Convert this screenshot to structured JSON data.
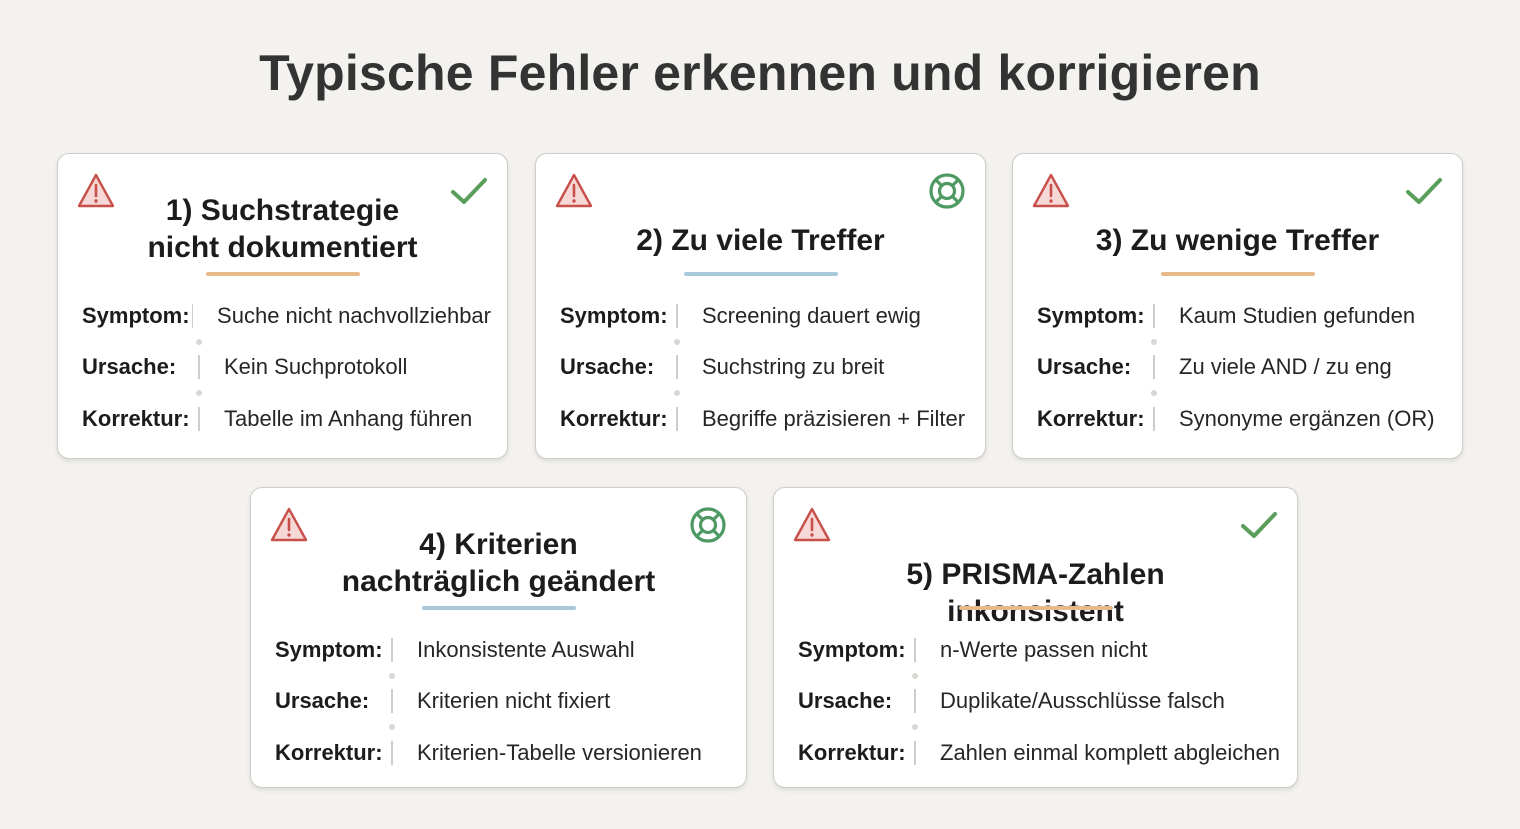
{
  "title": "Typische Fehler erkennen und korrigieren",
  "colors": {
    "warning": "#c8504b",
    "warning_fill": "#f6d9d7",
    "check": "#5a9e5c",
    "lifebuoy": "#4f9a63",
    "accent_orange": "#e9b98a",
    "accent_blue": "#a9c8dc"
  },
  "labels": {
    "symptom": "Symptom:",
    "cause": "Ursache:",
    "fix": "Korrektur:"
  },
  "cards": [
    {
      "title_lines": [
        "1) Suchstrategie",
        "nicht dokumentiert"
      ],
      "left_icon": "warning-icon",
      "right_icon": "check-icon",
      "accent": "orange",
      "symptom": "Suche nicht nachvollziehbar",
      "cause": "Kein Suchprotokoll",
      "fix": "Tabelle im Anhang führen"
    },
    {
      "title_lines": [
        "2) Zu viele Treffer"
      ],
      "left_icon": "warning-icon",
      "right_icon": "lifebuoy-icon",
      "accent": "blue",
      "symptom": "Screening dauert ewig",
      "cause": "Suchstring zu breit",
      "fix": "Begriffe präzisieren + Filter"
    },
    {
      "title_lines": [
        "3) Zu wenige Treffer"
      ],
      "left_icon": "warning-icon",
      "right_icon": "check-icon",
      "accent": "orange",
      "symptom": "Kaum Studien gefunden",
      "cause": "Zu viele AND / zu eng",
      "fix": "Synonyme ergänzen (OR)"
    },
    {
      "title_lines": [
        "4) Kriterien",
        "nachträglich geändert"
      ],
      "left_icon": "warning-icon",
      "right_icon": "lifebuoy-icon",
      "accent": "blue",
      "symptom": "Inkonsistente Auswahl",
      "cause": "Kriterien nicht fixiert",
      "fix": "Kriterien-Tabelle versionieren"
    },
    {
      "title_lines": [
        "5) PRISMA-Zahlen inkonsistent"
      ],
      "left_icon": "warning-icon",
      "right_icon": "check-icon",
      "accent": "orange",
      "symptom": "n-Werte passen nicht",
      "cause": "Duplikate/Ausschlüsse falsch",
      "fix": "Zahlen einmal komplett abgleichen"
    }
  ]
}
